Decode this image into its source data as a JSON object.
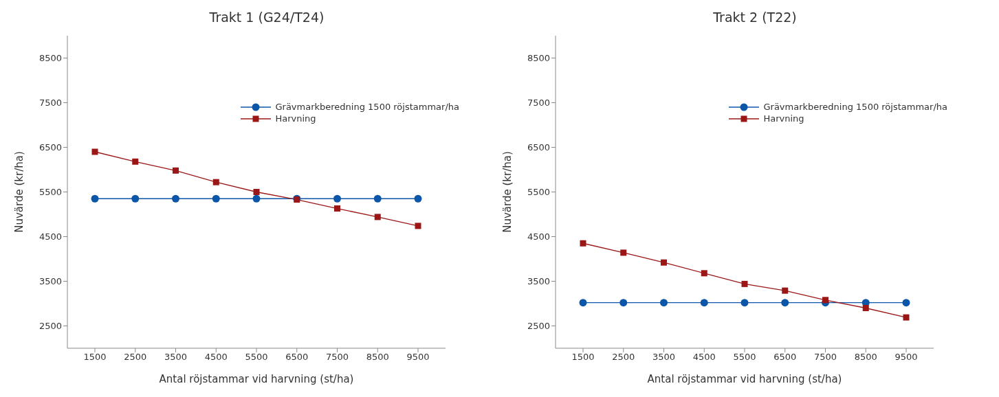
{
  "chart_data": [
    {
      "type": "line",
      "title": "Trakt 1 (G24/T24)",
      "xlabel": "Antal röjstammar vid harvning (st/ha)",
      "ylabel": "Nuvärde (kr/ha)",
      "categories": [
        "1500",
        "2500",
        "3500",
        "4500",
        "5500",
        "6500",
        "7500",
        "8500",
        "9500"
      ],
      "ylim": [
        2000,
        9000
      ],
      "yticks": [
        2500,
        3500,
        4500,
        5500,
        6500,
        7500,
        8500
      ],
      "grid": false,
      "legend": "top right",
      "line_style": "solid",
      "series": [
        {
          "name": "Grävmarkberedning 1500 röjstammar/ha",
          "color": "#0b56a8",
          "marker": "circle",
          "values": [
            5350,
            5350,
            5350,
            5350,
            5350,
            5350,
            5350,
            5350,
            5350
          ]
        },
        {
          "name": "Harvning",
          "color": "#9b1616",
          "marker": "square",
          "values": [
            6400,
            6180,
            5980,
            5720,
            5500,
            5330,
            5130,
            4940,
            4740
          ]
        }
      ]
    },
    {
      "type": "line",
      "title": "Trakt 2 (T22)",
      "xlabel": "Antal röjstammar vid harvning (st/ha)",
      "ylabel": "Nuvärde (kr/ha)",
      "categories": [
        "1500",
        "2500",
        "3500",
        "4500",
        "5500",
        "6500",
        "7500",
        "8500",
        "9500"
      ],
      "ylim": [
        2000,
        9000
      ],
      "yticks": [
        2500,
        3500,
        4500,
        5500,
        6500,
        7500,
        8500
      ],
      "grid": false,
      "legend": "top right",
      "line_style": "solid",
      "series": [
        {
          "name": "Grävmarkberedning 1500 röjstammar/ha",
          "color": "#0b56a8",
          "marker": "circle",
          "values": [
            3020,
            3020,
            3020,
            3020,
            3020,
            3020,
            3020,
            3020,
            3020
          ]
        },
        {
          "name": "Harvning",
          "color": "#9b1616",
          "marker": "square",
          "values": [
            4350,
            4140,
            3920,
            3680,
            3440,
            3290,
            3080,
            2900,
            2690
          ]
        }
      ]
    }
  ]
}
